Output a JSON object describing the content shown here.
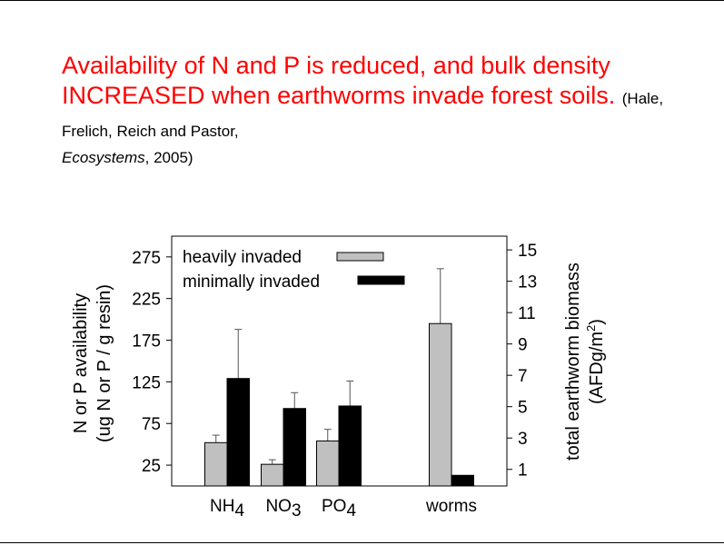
{
  "slide": {
    "title": "Availability of N and P is reduced, and bulk density INCREASED when earthworms invade forest soils.",
    "citation_authors": "(Hale, Frelich, Reich and Pastor,",
    "citation_journal": "Ecosystems",
    "citation_year": ", 2005)"
  },
  "chart_data": {
    "type": "bar",
    "categories": [
      "NH4",
      "NO3",
      "PO4",
      "worms"
    ],
    "category_labels": [
      {
        "base": "NH",
        "sub": "4"
      },
      {
        "base": "NO",
        "sub": "3"
      },
      {
        "base": "PO",
        "sub": "4"
      },
      {
        "base": "worms",
        "sub": ""
      }
    ],
    "series": [
      {
        "name": "heavily invaded",
        "color": "#c0c0c0",
        "values": [
          52,
          26,
          54,
          10.3
        ],
        "error_upper": [
          61,
          31.5,
          68,
          13.8
        ]
      },
      {
        "name": "minimally invaded",
        "color": "#000000",
        "values": [
          129,
          93,
          96,
          0.62
        ],
        "error_upper": [
          188,
          112,
          126,
          null
        ]
      }
    ],
    "worms_uses_right_axis": true,
    "ylabel_line1": "N or P availability",
    "ylabel_line2": "(ug N or P / g resin)",
    "y2label_line1": "total earthworm biomass",
    "y2label_line2": "(AFDg/m",
    "y2label_sup": "2",
    "y2label_end": ")",
    "yticks": [
      25,
      75,
      125,
      175,
      225,
      275
    ],
    "y2ticks": [
      1,
      3,
      5,
      7,
      9,
      11,
      13,
      15
    ],
    "ylim": [
      0,
      300
    ],
    "y2lim": [
      0,
      16
    ],
    "legend_placement": "top-left",
    "grid": false
  }
}
